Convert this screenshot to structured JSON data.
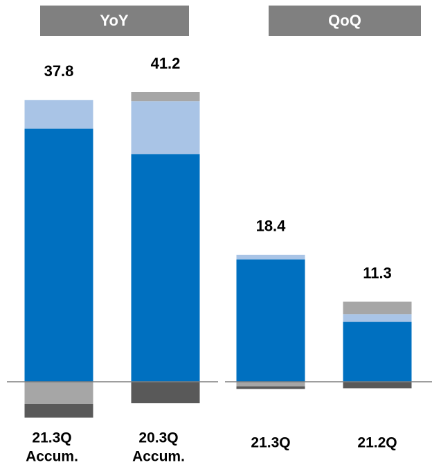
{
  "chart_data": {
    "type": "stacked-bar",
    "panels": [
      "YoY",
      "QoQ"
    ],
    "categories": [
      [
        "21.3Q",
        "Accum."
      ],
      [
        "20.3Q",
        "Accum."
      ],
      [
        "21.3Q"
      ],
      [
        "21.2Q"
      ]
    ],
    "totals": [
      37.8,
      41.2,
      18.4,
      11.3
    ],
    "series": [
      {
        "color": "#0070c0",
        "values": [
          38.9,
          35.0,
          18.8,
          9.2
        ]
      },
      {
        "color": "#a9c4e6",
        "values": [
          4.4,
          8.1,
          0.7,
          1.2
        ]
      },
      {
        "color": "#a6a6a6",
        "values": [
          -3.4,
          1.4,
          -0.7,
          1.9
        ]
      },
      {
        "color": "#595959",
        "values": [
          -2.1,
          -3.3,
          -0.4,
          -1.0
        ]
      }
    ]
  }
}
